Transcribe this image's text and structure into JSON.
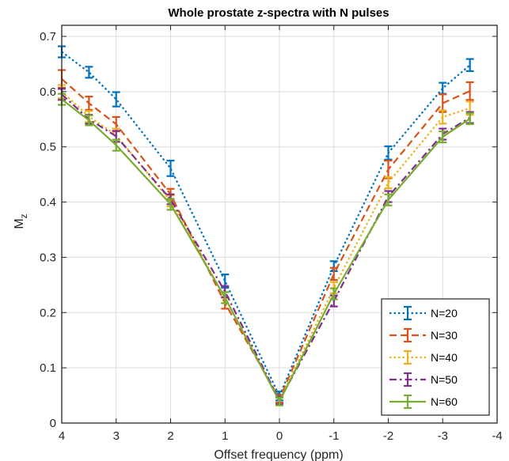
{
  "chart_data": {
    "type": "line",
    "title": "Whole prostate z-spectra with N pulses",
    "xlabel": "Offset frequency (ppm)",
    "ylabel_main": "M",
    "ylabel_sub": "z",
    "x_reversed": true,
    "xlim": [
      4,
      -4
    ],
    "ylim": [
      0,
      0.72
    ],
    "x_ticks": [
      4,
      3,
      2,
      1,
      0,
      -1,
      -2,
      -3,
      -4
    ],
    "x_tick_labels": [
      "4",
      "3",
      "2",
      "1",
      "0",
      "-1",
      "-2",
      "-3",
      "-4"
    ],
    "y_ticks": [
      0,
      0.1,
      0.2,
      0.3,
      0.4,
      0.5,
      0.6,
      0.7
    ],
    "y_tick_labels": [
      "0",
      "0.1",
      "0.2",
      "0.3",
      "0.4",
      "0.5",
      "0.6",
      "0.7"
    ],
    "grid": true,
    "legend_position": "bottom-right",
    "x": [
      4,
      3.5,
      3,
      2,
      1,
      0,
      -1,
      -2,
      -3,
      -3.5
    ],
    "series": [
      {
        "name": "N=20",
        "color": "#0072BD",
        "line_style": "dotted",
        "values": [
          0.672,
          0.635,
          0.586,
          0.461,
          0.257,
          0.049,
          0.284,
          0.489,
          0.606,
          0.648
        ],
        "errors": [
          0.01,
          0.01,
          0.013,
          0.014,
          0.012,
          0.008,
          0.009,
          0.012,
          0.01,
          0.011
        ]
      },
      {
        "name": "N=30",
        "color": "#D95319",
        "line_style": "dashed",
        "values": [
          0.623,
          0.579,
          0.541,
          0.414,
          0.217,
          0.044,
          0.27,
          0.459,
          0.579,
          0.601
        ],
        "errors": [
          0.016,
          0.012,
          0.013,
          0.01,
          0.01,
          0.007,
          0.011,
          0.016,
          0.016,
          0.016
        ]
      },
      {
        "name": "N=40",
        "color": "#EDB120",
        "line_style": "dotted",
        "values": [
          0.6,
          0.555,
          0.521,
          0.402,
          0.227,
          0.041,
          0.245,
          0.435,
          0.554,
          0.57
        ],
        "errors": [
          0.012,
          0.01,
          0.012,
          0.01,
          0.01,
          0.007,
          0.01,
          0.01,
          0.012,
          0.012
        ]
      },
      {
        "name": "N=50",
        "color": "#7E2F8E",
        "line_style": "dashdot",
        "values": [
          0.595,
          0.55,
          0.519,
          0.405,
          0.238,
          0.041,
          0.221,
          0.41,
          0.523,
          0.553
        ],
        "errors": [
          0.01,
          0.008,
          0.01,
          0.009,
          0.01,
          0.007,
          0.01,
          0.01,
          0.01,
          0.01
        ]
      },
      {
        "name": "N=60",
        "color": "#77AC30",
        "line_style": "solid",
        "values": [
          0.586,
          0.548,
          0.503,
          0.396,
          0.227,
          0.039,
          0.234,
          0.404,
          0.518,
          0.551
        ],
        "errors": [
          0.01,
          0.009,
          0.01,
          0.01,
          0.01,
          0.007,
          0.01,
          0.01,
          0.01,
          0.01
        ]
      }
    ]
  }
}
